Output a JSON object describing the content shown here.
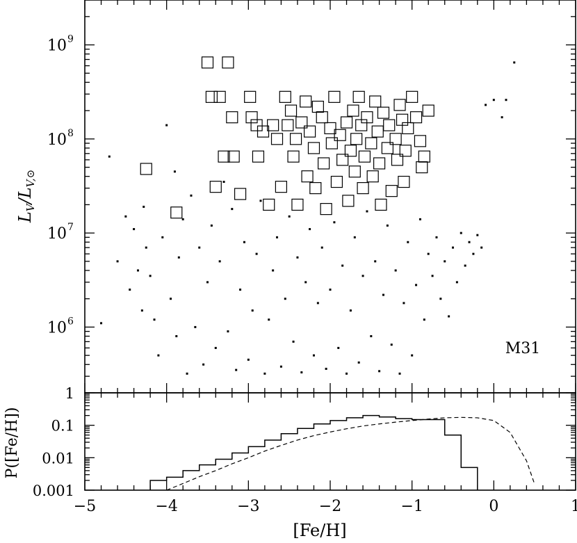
{
  "chart_data": [
    {
      "type": "scatter",
      "ylabel_main": "L",
      "ylabel_sub": "V",
      "ylabel_den_main": "L",
      "ylabel_den_sub": "V,⊙",
      "yscale": "log",
      "ylim": [
        200000,
        3000000000
      ],
      "xlim": [
        -5,
        1
      ],
      "yticks": [
        {
          "value": 1000000,
          "label": "10",
          "exp": "6"
        },
        {
          "value": 10000000,
          "label": "10",
          "exp": "7"
        },
        {
          "value": 100000000,
          "label": "10",
          "exp": "8"
        },
        {
          "value": 1000000000,
          "label": "10",
          "exp": "9"
        }
      ],
      "annotation": "M31",
      "series": [
        {
          "marker": "square",
          "points": [
            [
              -4.25,
              48000000
            ],
            [
              -3.88,
              16500000
            ],
            [
              -3.5,
              650000000
            ],
            [
              -3.45,
              280000000
            ],
            [
              -3.4,
              31000000
            ],
            [
              -3.35,
              280000000
            ],
            [
              -3.3,
              65000000
            ],
            [
              -3.25,
              650000000
            ],
            [
              -3.2,
              170000000
            ],
            [
              -3.18,
              65000000
            ],
            [
              -3.1,
              26000000
            ],
            [
              -2.98,
              280000000
            ],
            [
              -2.96,
              170000000
            ],
            [
              -2.9,
              140000000
            ],
            [
              -2.88,
              65000000
            ],
            [
              -2.82,
              120000000
            ],
            [
              -2.75,
              20000000
            ],
            [
              -2.7,
              140000000
            ],
            [
              -2.65,
              100000000
            ],
            [
              -2.6,
              31000000
            ],
            [
              -2.55,
              280000000
            ],
            [
              -2.52,
              140000000
            ],
            [
              -2.48,
              200000000
            ],
            [
              -2.45,
              65000000
            ],
            [
              -2.42,
              100000000
            ],
            [
              -2.4,
              20000000
            ],
            [
              -2.35,
              150000000
            ],
            [
              -2.3,
              250000000
            ],
            [
              -2.28,
              40000000
            ],
            [
              -2.25,
              120000000
            ],
            [
              -2.2,
              80000000
            ],
            [
              -2.18,
              30000000
            ],
            [
              -2.15,
              220000000
            ],
            [
              -2.1,
              170000000
            ],
            [
              -2.08,
              55000000
            ],
            [
              -2.05,
              18000000
            ],
            [
              -2.0,
              130000000
            ],
            [
              -1.98,
              90000000
            ],
            [
              -1.95,
              280000000
            ],
            [
              -1.92,
              35000000
            ],
            [
              -1.88,
              110000000
            ],
            [
              -1.85,
              60000000
            ],
            [
              -1.8,
              150000000
            ],
            [
              -1.78,
              22000000
            ],
            [
              -1.75,
              75000000
            ],
            [
              -1.72,
              200000000
            ],
            [
              -1.7,
              45000000
            ],
            [
              -1.68,
              100000000
            ],
            [
              -1.65,
              280000000
            ],
            [
              -1.62,
              140000000
            ],
            [
              -1.6,
              30000000
            ],
            [
              -1.58,
              65000000
            ],
            [
              -1.55,
              170000000
            ],
            [
              -1.5,
              90000000
            ],
            [
              -1.48,
              40000000
            ],
            [
              -1.45,
              250000000
            ],
            [
              -1.42,
              120000000
            ],
            [
              -1.4,
              55000000
            ],
            [
              -1.38,
              20000000
            ],
            [
              -1.35,
              190000000
            ],
            [
              -1.3,
              80000000
            ],
            [
              -1.28,
              140000000
            ],
            [
              -1.25,
              28000000
            ],
            [
              -1.2,
              100000000
            ],
            [
              -1.18,
              60000000
            ],
            [
              -1.15,
              230000000
            ],
            [
              -1.12,
              160000000
            ],
            [
              -1.1,
              35000000
            ],
            [
              -1.08,
              75000000
            ],
            [
              -1.05,
              130000000
            ],
            [
              -1.0,
              280000000
            ],
            [
              -0.95,
              170000000
            ],
            [
              -0.9,
              95000000
            ],
            [
              -0.88,
              50000000
            ],
            [
              -0.85,
              65000000
            ],
            [
              -0.8,
              200000000
            ]
          ]
        },
        {
          "marker": "dot",
          "points": [
            [
              -4.8,
              1100000
            ],
            [
              -4.7,
              65000000
            ],
            [
              -4.6,
              5000000
            ],
            [
              -4.5,
              15000000
            ],
            [
              -4.45,
              2500000
            ],
            [
              -4.4,
              11000000
            ],
            [
              -4.35,
              4000000
            ],
            [
              -4.3,
              1500000
            ],
            [
              -4.28,
              19000000
            ],
            [
              -4.25,
              7000000
            ],
            [
              -4.2,
              3500000
            ],
            [
              -4.15,
              1200000
            ],
            [
              -4.1,
              500000
            ],
            [
              -4.05,
              9000000
            ],
            [
              -4.0,
              140000000
            ],
            [
              -3.95,
              2000000
            ],
            [
              -3.9,
              45000000
            ],
            [
              -3.88,
              800000
            ],
            [
              -3.85,
              5500000
            ],
            [
              -3.8,
              14000000
            ],
            [
              -3.75,
              320000
            ],
            [
              -3.7,
              25000000
            ],
            [
              -3.65,
              1000000
            ],
            [
              -3.6,
              7000000
            ],
            [
              -3.55,
              400000
            ],
            [
              -3.5,
              3000000
            ],
            [
              -3.45,
              12000000
            ],
            [
              -3.4,
              600000
            ],
            [
              -3.35,
              5000000
            ],
            [
              -3.3,
              35000000
            ],
            [
              -3.25,
              900000
            ],
            [
              -3.2,
              18000000
            ],
            [
              -3.15,
              350000
            ],
            [
              -3.1,
              2500000
            ],
            [
              -3.05,
              8000000
            ],
            [
              -3.0,
              450000
            ],
            [
              -2.95,
              1500000
            ],
            [
              -2.9,
              6000000
            ],
            [
              -2.85,
              22000000
            ],
            [
              -2.8,
              320000
            ],
            [
              -2.75,
              1200000
            ],
            [
              -2.7,
              4000000
            ],
            [
              -2.65,
              9000000
            ],
            [
              -2.6,
              380000
            ],
            [
              -2.55,
              2000000
            ],
            [
              -2.5,
              15000000
            ],
            [
              -2.45,
              700000
            ],
            [
              -2.4,
              5500000
            ],
            [
              -2.35,
              330000
            ],
            [
              -2.3,
              3000000
            ],
            [
              -2.25,
              11000000
            ],
            [
              -2.2,
              500000
            ],
            [
              -2.15,
              1800000
            ],
            [
              -2.1,
              7000000
            ],
            [
              -2.05,
              360000
            ],
            [
              -2.0,
              2500000
            ],
            [
              -1.95,
              13000000
            ],
            [
              -1.9,
              600000
            ],
            [
              -1.85,
              4500000
            ],
            [
              -1.8,
              320000
            ],
            [
              -1.75,
              1500000
            ],
            [
              -1.7,
              9000000
            ],
            [
              -1.65,
              420000
            ],
            [
              -1.6,
              3500000
            ],
            [
              -1.55,
              17000000
            ],
            [
              -1.5,
              800000
            ],
            [
              -1.45,
              5000000
            ],
            [
              -1.4,
              340000
            ],
            [
              -1.35,
              2200000
            ],
            [
              -1.3,
              12000000
            ],
            [
              -1.25,
              650000
            ],
            [
              -1.2,
              4000000
            ],
            [
              -1.15,
              320000
            ],
            [
              -1.1,
              1800000
            ],
            [
              -1.05,
              8000000
            ],
            [
              -1.0,
              500000
            ],
            [
              -0.95,
              2800000
            ],
            [
              -0.9,
              14000000
            ],
            [
              -0.85,
              1200000
            ],
            [
              -0.8,
              6000000
            ],
            [
              -0.75,
              3500000
            ],
            [
              -0.7,
              9000000
            ],
            [
              -0.65,
              2000000
            ],
            [
              -0.6,
              5000000
            ],
            [
              -0.55,
              1300000
            ],
            [
              -0.5,
              7000000
            ],
            [
              -0.45,
              3000000
            ],
            [
              -0.4,
              10000000
            ],
            [
              -0.35,
              4500000
            ],
            [
              -0.3,
              8000000
            ],
            [
              -0.25,
              6000000
            ],
            [
              -0.2,
              9500000
            ],
            [
              -0.15,
              7000000
            ],
            [
              -0.1,
              230000000
            ],
            [
              0.0,
              260000000
            ],
            [
              0.1,
              170000000
            ],
            [
              0.15,
              260000000
            ],
            [
              0.25,
              650000000
            ]
          ]
        }
      ]
    },
    {
      "type": "line",
      "ylabel": "P([Fe/H])",
      "xlabel": "[Fe/H]",
      "yscale": "log",
      "ylim": [
        0.001,
        1
      ],
      "xlim": [
        -5,
        1
      ],
      "yticks": [
        "0.001",
        "0.01",
        "0.1",
        "1"
      ],
      "xticks": [
        "−5",
        "−4",
        "−3",
        "−2",
        "−1",
        "0",
        "1"
      ],
      "series": [
        {
          "style": "step",
          "bin_edges": [
            -4.2,
            -4.0,
            -3.8,
            -3.6,
            -3.4,
            -3.2,
            -3.0,
            -2.8,
            -2.6,
            -2.4,
            -2.2,
            -2.0,
            -1.8,
            -1.6,
            -1.4,
            -1.2,
            -1.0,
            -0.8,
            -0.6,
            -0.4,
            -0.2
          ],
          "values": [
            0.002,
            0.0025,
            0.004,
            0.006,
            0.009,
            0.014,
            0.022,
            0.035,
            0.055,
            0.08,
            0.11,
            0.14,
            0.17,
            0.2,
            0.18,
            0.16,
            0.15,
            0.15,
            0.05,
            0.005
          ]
        },
        {
          "style": "dashed",
          "x": [
            -4.0,
            -3.8,
            -3.6,
            -3.4,
            -3.2,
            -3.0,
            -2.8,
            -2.6,
            -2.4,
            -2.2,
            -2.0,
            -1.8,
            -1.6,
            -1.4,
            -1.2,
            -1.0,
            -0.8,
            -0.6,
            -0.4,
            -0.2,
            0.0,
            0.2,
            0.4,
            0.5
          ],
          "y": [
            0.001,
            0.0016,
            0.0026,
            0.004,
            0.0065,
            0.01,
            0.016,
            0.024,
            0.035,
            0.048,
            0.062,
            0.078,
            0.095,
            0.11,
            0.125,
            0.14,
            0.155,
            0.17,
            0.175,
            0.17,
            0.14,
            0.06,
            0.008,
            0.0015
          ]
        }
      ]
    }
  ]
}
